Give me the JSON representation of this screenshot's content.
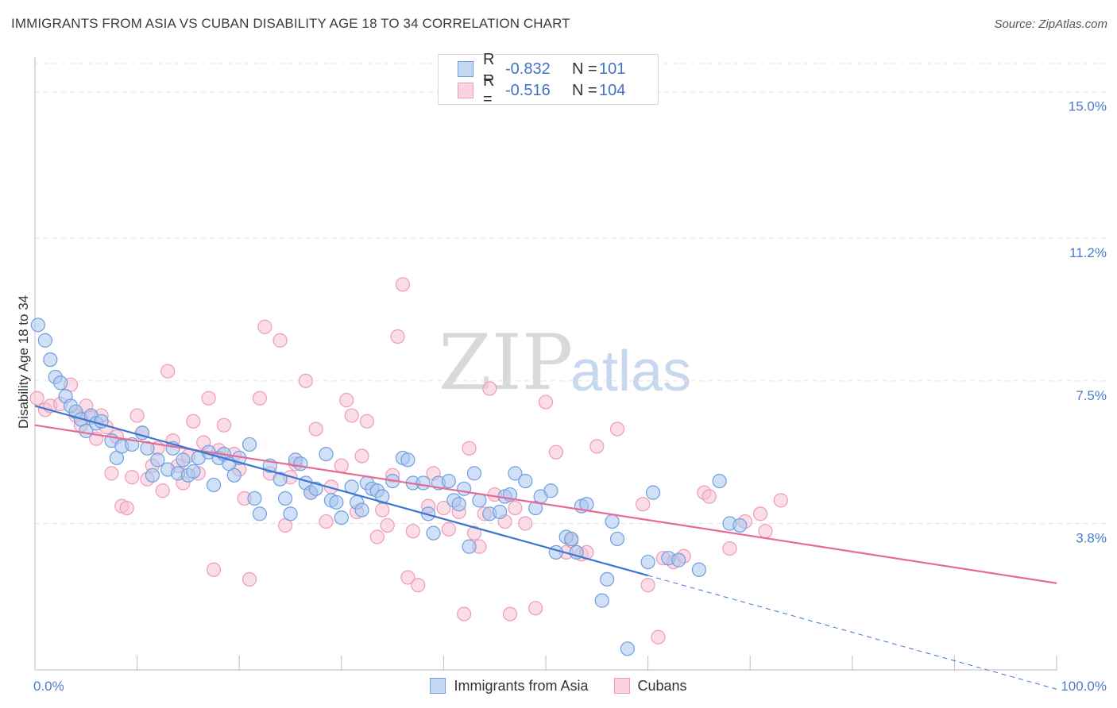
{
  "header": {
    "title": "IMMIGRANTS FROM ASIA VS CUBAN DISABILITY AGE 18 TO 34 CORRELATION CHART",
    "source": "Source: ZipAtlas.com"
  },
  "watermark": {
    "zip": "ZIP",
    "atlas": "atlas"
  },
  "colors": {
    "blue_fill": "#a9c6ee",
    "blue_stroke": "#6f9fe0",
    "blue_line": "#3a76d0",
    "pink_fill": "#f6c1d1",
    "pink_stroke": "#ee9bb6",
    "pink_line": "#e86a94",
    "grid": "#e3e3e3",
    "tick_text": "#4a7cc9"
  },
  "legend_stats": [
    {
      "r_label": "R =",
      "r_value": "-0.832",
      "n_label": "N =",
      "n_value": "101"
    },
    {
      "r_label": "R =",
      "r_value": "-0.516",
      "n_label": "N =",
      "n_value": "104"
    }
  ],
  "chart_data": {
    "type": "scatter",
    "xlabel": "",
    "ylabel": "Disability Age 18 to 34",
    "xlim": [
      0,
      100
    ],
    "ylim": [
      0,
      15.9
    ],
    "x_tick_labels": [
      "0.0%",
      "100.0%"
    ],
    "y_ticks": [
      3.8,
      7.5,
      11.2,
      15.0
    ],
    "y_tick_labels": [
      "3.8%",
      "7.5%",
      "11.2%",
      "15.0%"
    ],
    "grid": "horizontal dashed",
    "legend_position": "bottom-center",
    "series": [
      {
        "name": "Immigrants from Asia",
        "trend": {
          "x0": 0,
          "y0": 6.85,
          "x1": 60,
          "y1": 2.45,
          "dashed_to_x": 100,
          "dashed_to_y": -0.5
        },
        "points": [
          [
            0.3,
            8.95
          ],
          [
            1.0,
            8.55
          ],
          [
            1.5,
            8.05
          ],
          [
            2.0,
            7.6
          ],
          [
            2.5,
            7.45
          ],
          [
            3.0,
            7.1
          ],
          [
            3.5,
            6.85
          ],
          [
            4.0,
            6.7
          ],
          [
            4.5,
            6.5
          ],
          [
            5.5,
            6.6
          ],
          [
            5.0,
            6.2
          ],
          [
            6.0,
            6.4
          ],
          [
            6.5,
            6.45
          ],
          [
            7.5,
            5.95
          ],
          [
            8.0,
            5.5
          ],
          [
            8.5,
            5.8
          ],
          [
            9.5,
            5.85
          ],
          [
            10.5,
            6.15
          ],
          [
            11.0,
            5.75
          ],
          [
            11.5,
            5.05
          ],
          [
            12.0,
            5.45
          ],
          [
            13.0,
            5.2
          ],
          [
            13.5,
            5.75
          ],
          [
            14.0,
            5.1
          ],
          [
            14.5,
            5.45
          ],
          [
            15.0,
            5.05
          ],
          [
            15.5,
            5.15
          ],
          [
            16.0,
            5.5
          ],
          [
            17.0,
            5.65
          ],
          [
            17.5,
            4.8
          ],
          [
            18.0,
            5.5
          ],
          [
            18.5,
            5.6
          ],
          [
            19.0,
            5.35
          ],
          [
            19.5,
            5.05
          ],
          [
            20.0,
            5.5
          ],
          [
            21.0,
            5.85
          ],
          [
            21.5,
            4.45
          ],
          [
            22.0,
            4.05
          ],
          [
            23.0,
            5.3
          ],
          [
            24.0,
            4.95
          ],
          [
            24.5,
            4.45
          ],
          [
            25.0,
            4.05
          ],
          [
            25.5,
            5.45
          ],
          [
            26.0,
            5.35
          ],
          [
            26.5,
            4.85
          ],
          [
            27.0,
            4.6
          ],
          [
            27.5,
            4.7
          ],
          [
            28.5,
            5.6
          ],
          [
            29.0,
            4.4
          ],
          [
            29.5,
            4.35
          ],
          [
            30.0,
            3.95
          ],
          [
            31.0,
            4.75
          ],
          [
            31.5,
            4.35
          ],
          [
            32.0,
            4.15
          ],
          [
            32.5,
            4.85
          ],
          [
            33.0,
            4.7
          ],
          [
            33.5,
            4.65
          ],
          [
            34.0,
            4.5
          ],
          [
            35.0,
            4.9
          ],
          [
            36.0,
            5.5
          ],
          [
            36.5,
            5.45
          ],
          [
            37.0,
            4.85
          ],
          [
            38.0,
            4.85
          ],
          [
            38.5,
            4.05
          ],
          [
            39.0,
            3.55
          ],
          [
            39.5,
            4.85
          ],
          [
            40.5,
            4.9
          ],
          [
            41.0,
            4.4
          ],
          [
            41.5,
            4.3
          ],
          [
            42.0,
            4.7
          ],
          [
            42.5,
            3.2
          ],
          [
            43.0,
            5.1
          ],
          [
            43.5,
            4.4
          ],
          [
            44.5,
            4.05
          ],
          [
            45.5,
            4.1
          ],
          [
            46.0,
            4.5
          ],
          [
            46.5,
            4.55
          ],
          [
            47.0,
            5.1
          ],
          [
            48.0,
            4.9
          ],
          [
            49.0,
            4.2
          ],
          [
            49.5,
            4.5
          ],
          [
            50.5,
            4.65
          ],
          [
            51.0,
            3.05
          ],
          [
            52.0,
            3.45
          ],
          [
            52.5,
            3.4
          ],
          [
            53.0,
            3.05
          ],
          [
            53.5,
            4.25
          ],
          [
            54.0,
            4.3
          ],
          [
            55.5,
            1.8
          ],
          [
            56.0,
            2.35
          ],
          [
            56.5,
            3.85
          ],
          [
            57.0,
            3.4
          ],
          [
            58.0,
            0.55
          ],
          [
            60.0,
            2.8
          ],
          [
            60.5,
            4.6
          ],
          [
            62.0,
            2.9
          ],
          [
            63.0,
            2.85
          ],
          [
            65.0,
            2.6
          ],
          [
            67.0,
            4.9
          ],
          [
            68.0,
            3.8
          ],
          [
            69.0,
            3.75
          ]
        ]
      },
      {
        "name": "Cubans",
        "trend": {
          "x0": 0,
          "y0": 6.35,
          "x1": 100,
          "y1": 2.25
        },
        "points": [
          [
            0.2,
            7.05
          ],
          [
            1.0,
            6.75
          ],
          [
            1.5,
            6.85
          ],
          [
            2.5,
            6.9
          ],
          [
            3.5,
            7.4
          ],
          [
            4.0,
            6.6
          ],
          [
            4.5,
            6.35
          ],
          [
            5.0,
            6.85
          ],
          [
            5.5,
            6.55
          ],
          [
            6.0,
            6.0
          ],
          [
            6.5,
            6.6
          ],
          [
            7.0,
            6.3
          ],
          [
            7.5,
            5.1
          ],
          [
            8.0,
            6.05
          ],
          [
            8.5,
            4.25
          ],
          [
            9.0,
            4.2
          ],
          [
            9.5,
            5.0
          ],
          [
            10.0,
            6.6
          ],
          [
            10.5,
            6.15
          ],
          [
            11.0,
            4.95
          ],
          [
            11.5,
            5.3
          ],
          [
            12.0,
            5.75
          ],
          [
            12.5,
            4.65
          ],
          [
            13.0,
            7.75
          ],
          [
            13.5,
            5.95
          ],
          [
            14.0,
            5.3
          ],
          [
            14.5,
            4.85
          ],
          [
            15.0,
            5.55
          ],
          [
            15.5,
            6.45
          ],
          [
            16.0,
            5.1
          ],
          [
            16.5,
            5.9
          ],
          [
            17.0,
            7.05
          ],
          [
            17.5,
            2.6
          ],
          [
            18.0,
            5.7
          ],
          [
            18.5,
            6.35
          ],
          [
            19.5,
            5.6
          ],
          [
            20.0,
            5.2
          ],
          [
            20.5,
            4.45
          ],
          [
            21.0,
            2.35
          ],
          [
            22.0,
            7.05
          ],
          [
            22.5,
            8.9
          ],
          [
            23.0,
            5.1
          ],
          [
            24.0,
            8.55
          ],
          [
            24.5,
            3.75
          ],
          [
            25.0,
            5.0
          ],
          [
            25.5,
            5.35
          ],
          [
            26.5,
            7.5
          ],
          [
            27.0,
            4.6
          ],
          [
            27.5,
            6.25
          ],
          [
            28.5,
            3.85
          ],
          [
            29.0,
            4.75
          ],
          [
            30.0,
            5.3
          ],
          [
            30.5,
            7.0
          ],
          [
            31.0,
            6.6
          ],
          [
            31.5,
            4.1
          ],
          [
            32.0,
            5.55
          ],
          [
            32.5,
            6.45
          ],
          [
            33.5,
            3.45
          ],
          [
            34.0,
            4.15
          ],
          [
            34.5,
            3.75
          ],
          [
            35.0,
            5.05
          ],
          [
            35.5,
            8.65
          ],
          [
            36.0,
            10.0
          ],
          [
            36.5,
            2.4
          ],
          [
            37.0,
            3.6
          ],
          [
            37.5,
            2.2
          ],
          [
            38.5,
            4.25
          ],
          [
            39.0,
            5.1
          ],
          [
            40.0,
            4.2
          ],
          [
            40.5,
            3.65
          ],
          [
            41.5,
            4.1
          ],
          [
            42.0,
            1.45
          ],
          [
            42.5,
            5.75
          ],
          [
            43.0,
            3.55
          ],
          [
            43.5,
            3.2
          ],
          [
            44.0,
            4.05
          ],
          [
            44.5,
            7.3
          ],
          [
            45.0,
            4.55
          ],
          [
            46.0,
            3.85
          ],
          [
            46.5,
            1.45
          ],
          [
            47.0,
            4.2
          ],
          [
            48.0,
            3.8
          ],
          [
            49.0,
            1.6
          ],
          [
            50.0,
            6.95
          ],
          [
            51.0,
            5.65
          ],
          [
            52.0,
            3.05
          ],
          [
            52.5,
            3.35
          ],
          [
            53.5,
            3.0
          ],
          [
            54.0,
            3.05
          ],
          [
            55.0,
            5.8
          ],
          [
            57.0,
            6.25
          ],
          [
            59.5,
            4.3
          ],
          [
            60.0,
            2.2
          ],
          [
            61.0,
            0.85
          ],
          [
            61.5,
            2.9
          ],
          [
            62.5,
            2.8
          ],
          [
            63.5,
            2.95
          ],
          [
            65.5,
            4.6
          ],
          [
            66.0,
            4.5
          ],
          [
            68.0,
            3.15
          ],
          [
            69.5,
            3.85
          ],
          [
            71.0,
            4.05
          ],
          [
            71.5,
            3.6
          ],
          [
            73.0,
            4.4
          ]
        ]
      }
    ]
  },
  "bottom_legend": {
    "blue_label": "Immigrants from Asia",
    "pink_label": "Cubans"
  }
}
